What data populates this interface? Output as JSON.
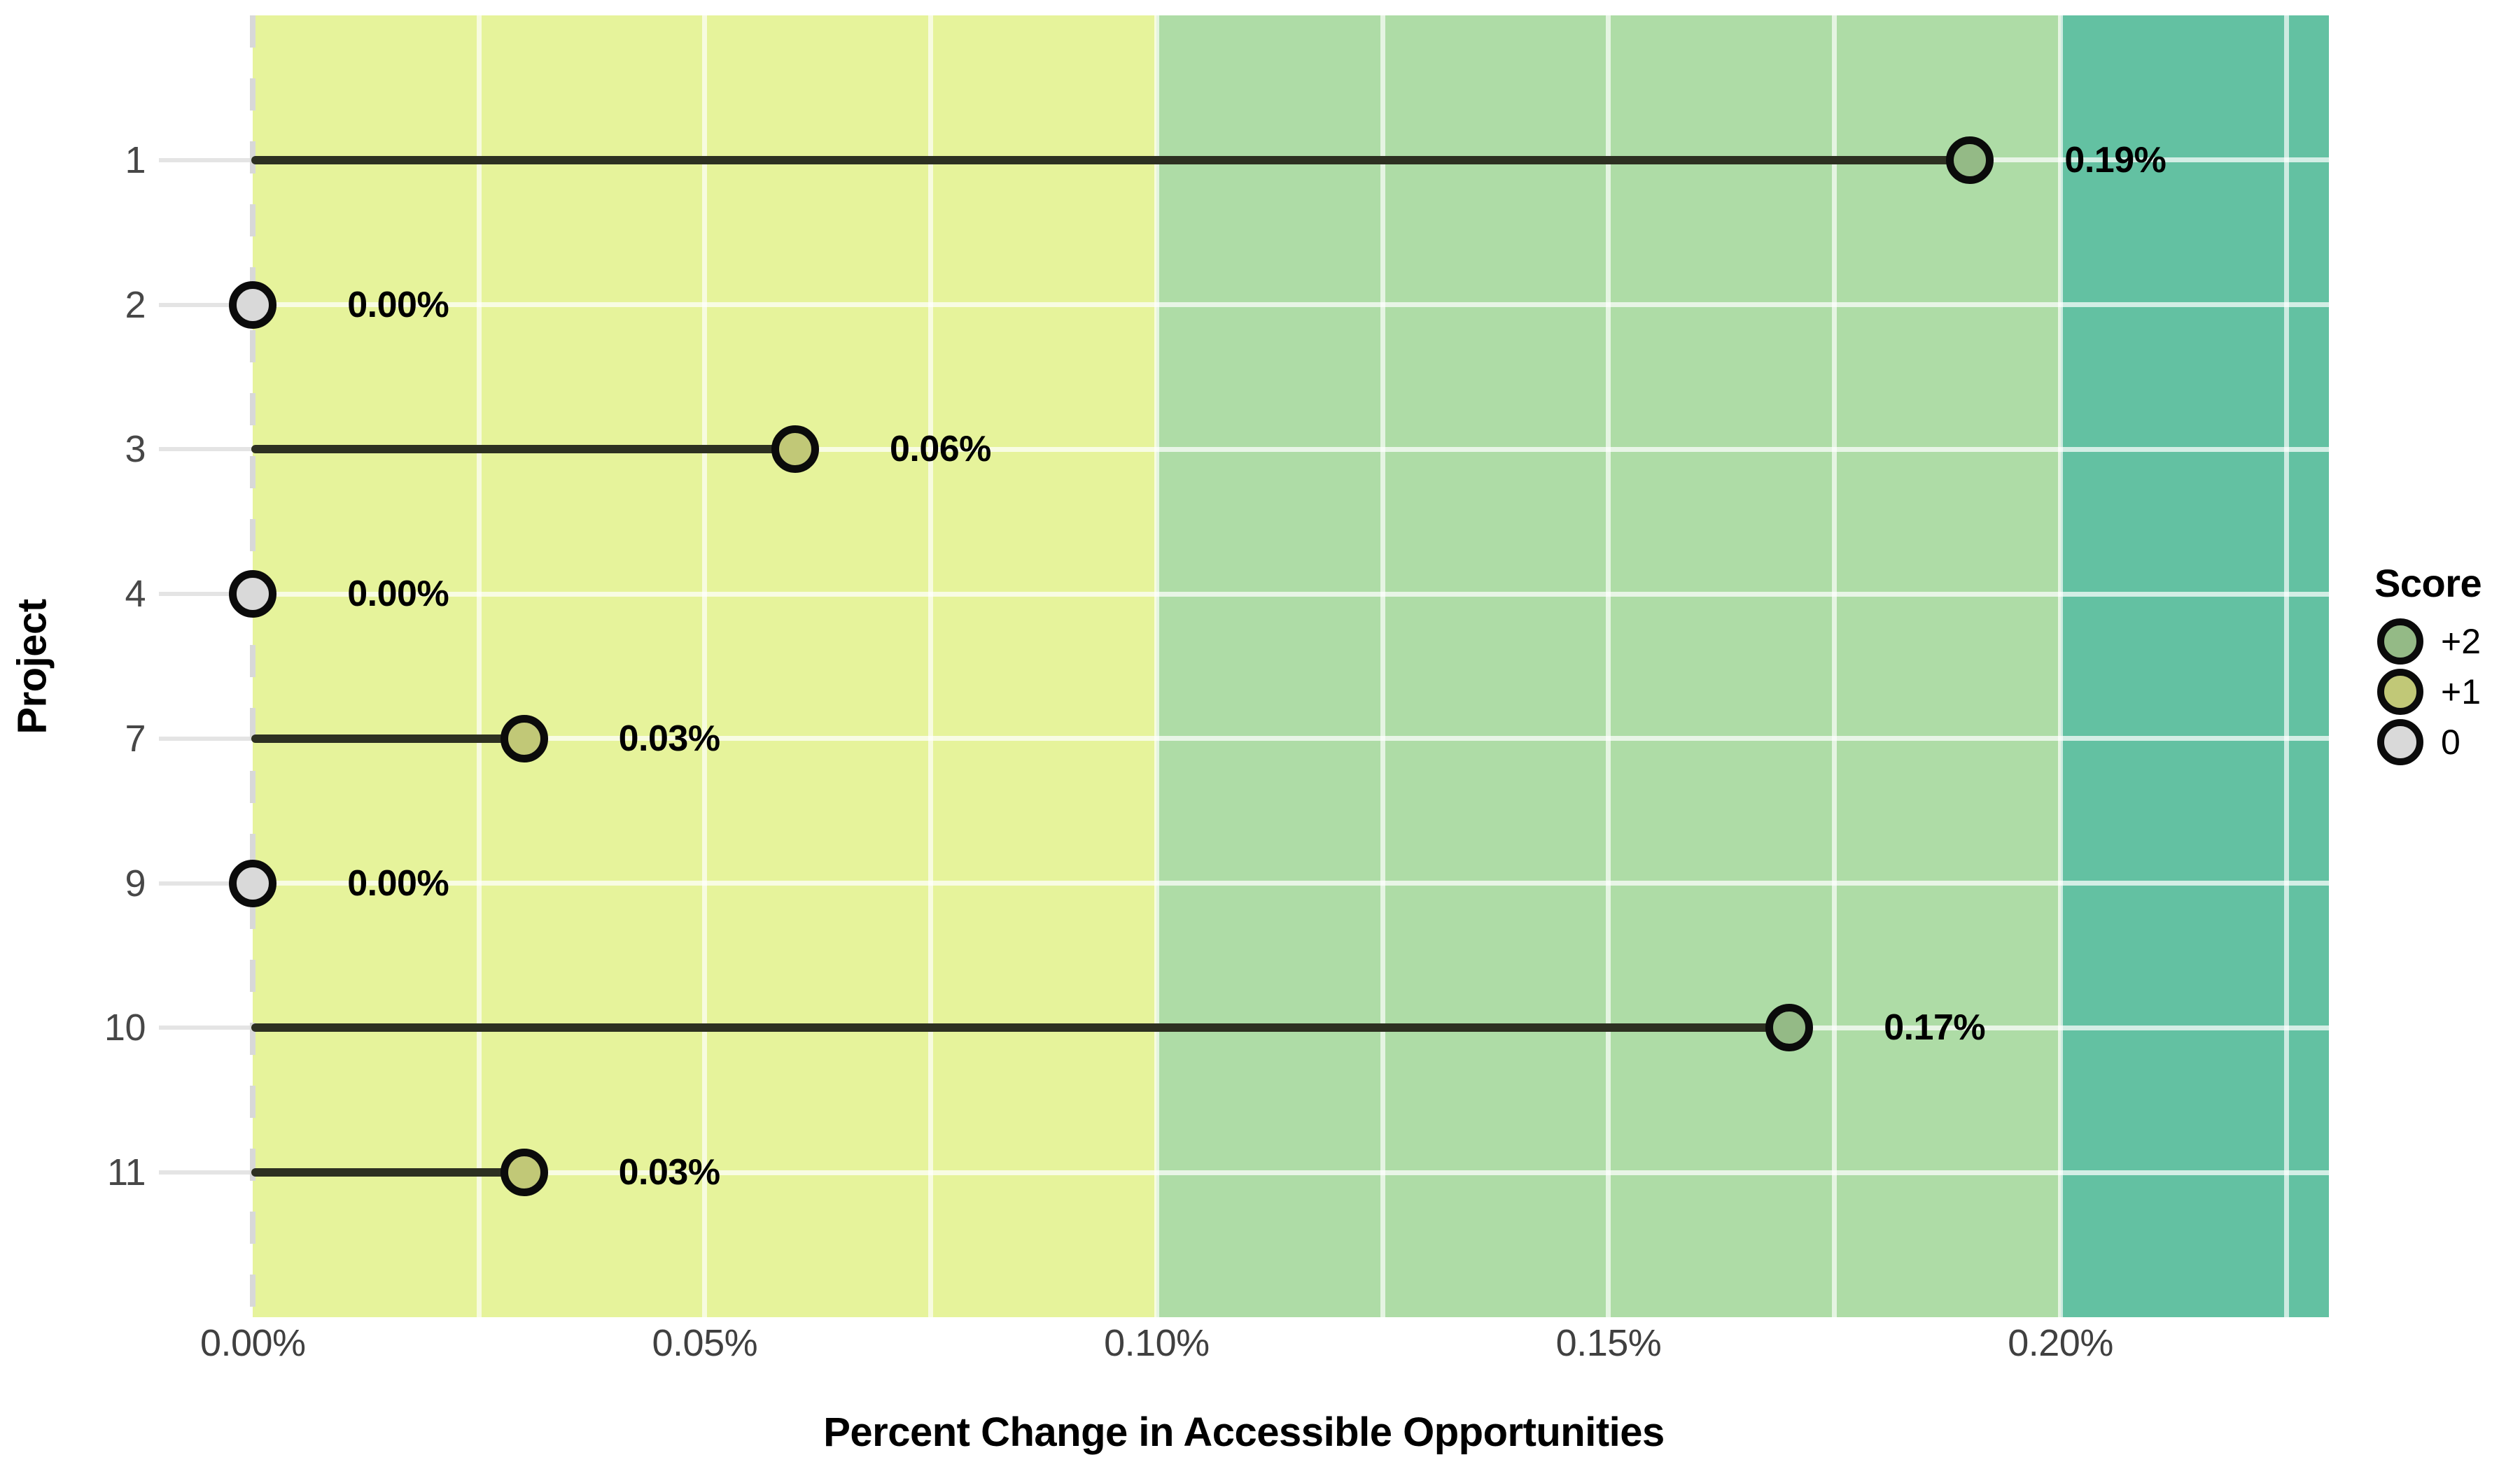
{
  "chart_data": {
    "type": "scatter",
    "style": "lollipop",
    "title": "",
    "xlabel": "Percent Change in Accessible Opportunities",
    "ylabel": "Project",
    "x_unit": "%",
    "x_range": [
      -0.0104,
      0.2297
    ],
    "x_minor_grid_step": 0.025,
    "grid": "on",
    "categories": [
      "1",
      "2",
      "3",
      "4",
      "7",
      "9",
      "10",
      "11"
    ],
    "rows": [
      {
        "project": "1",
        "value_pct": 0.19,
        "label": "0.19%",
        "score": "+2"
      },
      {
        "project": "2",
        "value_pct": 0.0,
        "label": "0.00%",
        "score": "0"
      },
      {
        "project": "3",
        "value_pct": 0.06,
        "label": "0.06%",
        "score": "+1"
      },
      {
        "project": "4",
        "value_pct": 0.0,
        "label": "0.00%",
        "score": "0"
      },
      {
        "project": "7",
        "value_pct": 0.03,
        "label": "0.03%",
        "score": "+1"
      },
      {
        "project": "9",
        "value_pct": 0.0,
        "label": "0.00%",
        "score": "0"
      },
      {
        "project": "10",
        "value_pct": 0.17,
        "label": "0.17%",
        "score": "+2"
      },
      {
        "project": "11",
        "value_pct": 0.03,
        "label": "0.03%",
        "score": "+1"
      }
    ],
    "x_ticks": [
      {
        "value": 0.0,
        "label": "0.00%"
      },
      {
        "value": 0.05,
        "label": "0.05%"
      },
      {
        "value": 0.1,
        "label": "0.10%"
      },
      {
        "value": 0.15,
        "label": "0.15%"
      },
      {
        "value": 0.2,
        "label": "0.20%"
      }
    ],
    "bands": [
      {
        "from": 0.0,
        "to": 0.1,
        "color": "#e6f39b"
      },
      {
        "from": 0.1,
        "to": 0.2,
        "color": "#aedca6"
      },
      {
        "from": 0.2,
        "to": 0.2297,
        "color": "#63c1a2"
      }
    ],
    "zero_line_style": "dashed",
    "stem_color": "#2d3021",
    "dot_outline_color": "#0b0b0b",
    "score_colors": {
      "+2": "#94ba86",
      "+1": "#c1c877",
      "0": "#d9d9d9"
    },
    "legend": {
      "position": "right",
      "title": "Score",
      "items": [
        {
          "label": "+2",
          "color": "#94ba86"
        },
        {
          "label": "+1",
          "color": "#c1c877"
        },
        {
          "label": "0",
          "color": "#d9d9d9"
        }
      ]
    }
  }
}
